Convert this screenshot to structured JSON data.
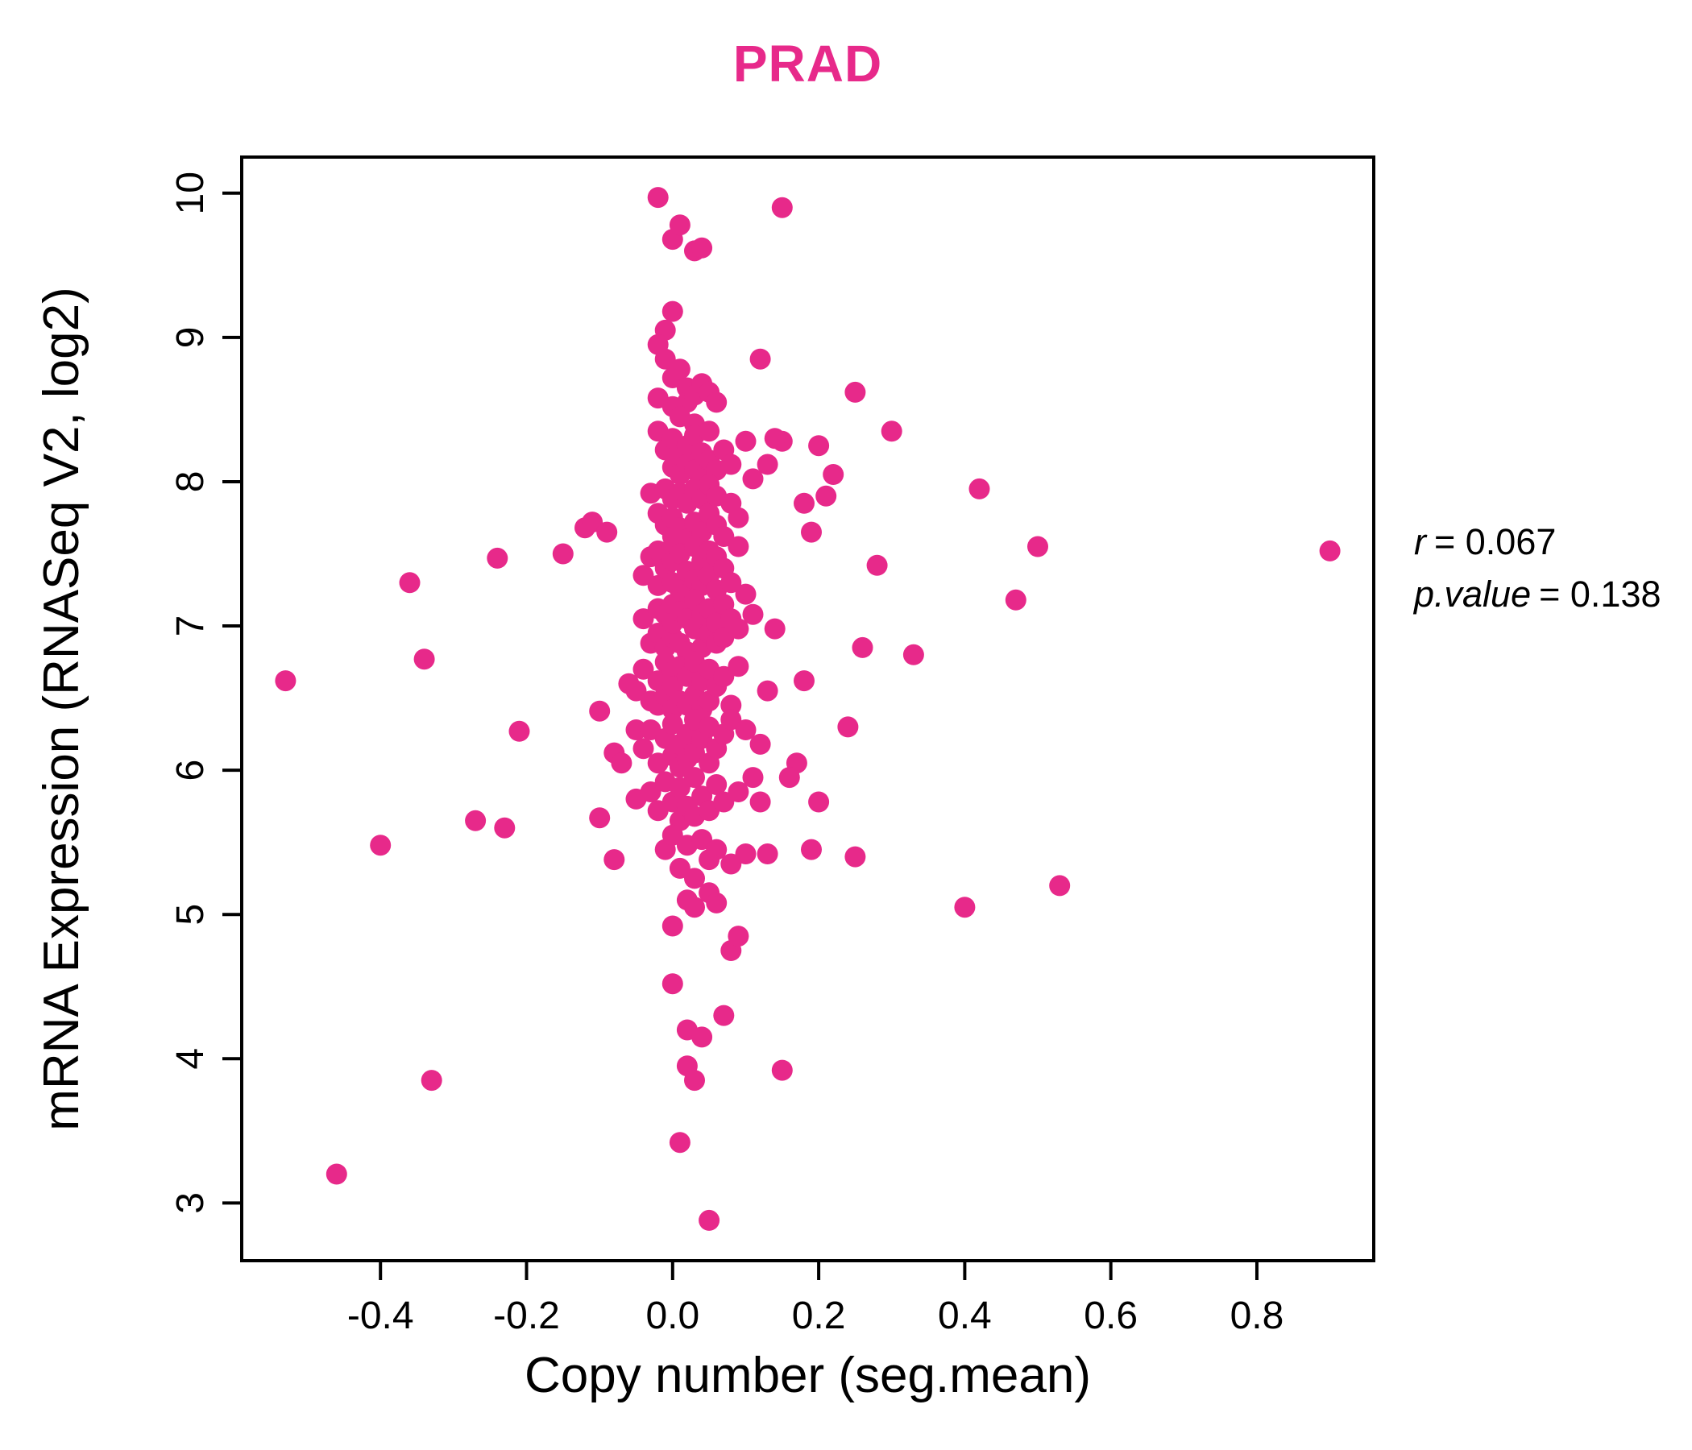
{
  "chart_data": {
    "type": "scatter",
    "title": "PRAD",
    "title_color": "#E7298A",
    "point_color": "#E7298A",
    "axis_color": "#000000",
    "xlabel": "Copy number (seg.mean)",
    "ylabel": "mRNA Expression (RNASeq V2, log2)",
    "xlim": [
      -0.59,
      0.96
    ],
    "ylim": [
      2.6,
      10.25
    ],
    "grid": false,
    "legend": "none",
    "xticks": [
      {
        "v": -0.4,
        "label": "-0.4"
      },
      {
        "v": -0.2,
        "label": "-0.2"
      },
      {
        "v": 0.0,
        "label": "0.0"
      },
      {
        "v": 0.2,
        "label": "0.2"
      },
      {
        "v": 0.4,
        "label": "0.4"
      },
      {
        "v": 0.6,
        "label": "0.6"
      },
      {
        "v": 0.8,
        "label": "0.8"
      }
    ],
    "yticks": [
      {
        "v": 3,
        "label": "3"
      },
      {
        "v": 4,
        "label": "4"
      },
      {
        "v": 5,
        "label": "5"
      },
      {
        "v": 6,
        "label": "6"
      },
      {
        "v": 7,
        "label": "7"
      },
      {
        "v": 8,
        "label": "8"
      },
      {
        "v": 9,
        "label": "9"
      },
      {
        "v": 10,
        "label": "10"
      }
    ],
    "annotation": {
      "lines": [
        {
          "name": "r",
          "eq": "= 0.067"
        },
        {
          "name": "p.value",
          "eq": "= 0.138"
        }
      ]
    },
    "points": [
      [
        -0.53,
        6.62
      ],
      [
        -0.46,
        3.2
      ],
      [
        -0.4,
        5.48
      ],
      [
        -0.36,
        7.3
      ],
      [
        -0.34,
        6.77
      ],
      [
        -0.33,
        3.85
      ],
      [
        -0.27,
        5.65
      ],
      [
        -0.24,
        7.47
      ],
      [
        -0.23,
        5.6
      ],
      [
        -0.21,
        6.27
      ],
      [
        -0.15,
        7.5
      ],
      [
        -0.12,
        7.68
      ],
      [
        -0.11,
        7.72
      ],
      [
        -0.1,
        6.41
      ],
      [
        -0.1,
        5.67
      ],
      [
        -0.09,
        7.65
      ],
      [
        -0.08,
        6.12
      ],
      [
        -0.08,
        5.38
      ],
      [
        -0.07,
        6.05
      ],
      [
        -0.06,
        6.6
      ],
      [
        -0.05,
        5.8
      ],
      [
        -0.05,
        6.28
      ],
      [
        -0.02,
        9.97
      ],
      [
        0.0,
        9.68
      ],
      [
        0.01,
        9.78
      ],
      [
        0.03,
        9.6
      ],
      [
        0.04,
        9.62
      ],
      [
        0.15,
        9.9
      ],
      [
        0.0,
        9.18
      ],
      [
        -0.01,
        9.05
      ],
      [
        -0.02,
        8.95
      ],
      [
        0.05,
        2.88
      ],
      [
        0.01,
        3.42
      ],
      [
        0.0,
        4.52
      ],
      [
        0.02,
        4.2
      ],
      [
        0.04,
        4.15
      ],
      [
        0.07,
        4.3
      ],
      [
        0.0,
        4.92
      ],
      [
        0.02,
        3.95
      ],
      [
        0.03,
        3.85
      ],
      [
        0.15,
        3.92
      ],
      [
        0.08,
        4.75
      ],
      [
        0.09,
        4.85
      ],
      [
        0.9,
        7.52
      ],
      [
        0.53,
        5.2
      ],
      [
        0.4,
        5.05
      ],
      [
        0.42,
        7.95
      ],
      [
        0.47,
        7.18
      ],
      [
        0.5,
        7.55
      ],
      [
        0.33,
        6.8
      ],
      [
        0.3,
        8.35
      ],
      [
        0.25,
        8.62
      ],
      [
        0.28,
        7.42
      ],
      [
        0.26,
        6.85
      ],
      [
        0.22,
        8.05
      ],
      [
        0.21,
        7.9
      ],
      [
        0.2,
        8.25
      ],
      [
        0.2,
        5.78
      ],
      [
        0.19,
        5.45
      ],
      [
        0.18,
        6.62
      ],
      [
        0.17,
        6.05
      ],
      [
        0.16,
        5.95
      ],
      [
        0.15,
        8.28
      ],
      [
        0.14,
        8.3
      ],
      [
        0.14,
        6.98
      ],
      [
        0.13,
        8.12
      ],
      [
        0.13,
        5.42
      ],
      [
        0.24,
        6.3
      ],
      [
        0.25,
        5.4
      ],
      [
        0.19,
        7.65
      ],
      [
        0.18,
        7.85
      ],
      [
        0.12,
        5.78
      ],
      [
        0.13,
        6.55
      ],
      [
        -0.01,
        8.85
      ],
      [
        0.0,
        8.72
      ],
      [
        0.01,
        8.78
      ],
      [
        0.02,
        8.65
      ],
      [
        0.02,
        8.55
      ],
      [
        0.03,
        8.6
      ],
      [
        0.0,
        8.52
      ],
      [
        -0.02,
        8.58
      ],
      [
        0.04,
        8.68
      ],
      [
        0.05,
        8.62
      ],
      [
        0.01,
        8.45
      ],
      [
        0.03,
        8.4
      ],
      [
        0.06,
        8.55
      ],
      [
        0.12,
        8.85
      ],
      [
        -0.02,
        8.35
      ],
      [
        -0.01,
        8.22
      ],
      [
        0.0,
        8.3
      ],
      [
        0.0,
        8.1
      ],
      [
        0.01,
        8.18
      ],
      [
        0.01,
        8.05
      ],
      [
        0.02,
        8.25
      ],
      [
        0.02,
        8.12
      ],
      [
        0.03,
        8.32
      ],
      [
        0.03,
        8.08
      ],
      [
        0.04,
        8.2
      ],
      [
        0.04,
        8.02
      ],
      [
        0.05,
        8.15
      ],
      [
        0.05,
        8.35
      ],
      [
        0.06,
        8.08
      ],
      [
        0.07,
        8.22
      ],
      [
        0.08,
        8.12
      ],
      [
        0.1,
        8.28
      ],
      [
        0.11,
        8.02
      ],
      [
        -0.03,
        7.92
      ],
      [
        -0.02,
        7.78
      ],
      [
        -0.01,
        7.95
      ],
      [
        -0.01,
        7.7
      ],
      [
        0.0,
        7.88
      ],
      [
        0.0,
        7.62
      ],
      [
        0.0,
        7.75
      ],
      [
        0.01,
        7.92
      ],
      [
        0.01,
        7.68
      ],
      [
        0.02,
        7.85
      ],
      [
        0.02,
        7.6
      ],
      [
        0.03,
        7.95
      ],
      [
        0.03,
        7.72
      ],
      [
        0.04,
        7.88
      ],
      [
        0.04,
        7.65
      ],
      [
        0.05,
        7.78
      ],
      [
        0.05,
        7.98
      ],
      [
        0.06,
        7.7
      ],
      [
        0.06,
        7.9
      ],
      [
        0.07,
        7.62
      ],
      [
        0.08,
        7.85
      ],
      [
        0.09,
        7.75
      ],
      [
        -0.04,
        7.35
      ],
      [
        -0.03,
        7.48
      ],
      [
        -0.02,
        7.28
      ],
      [
        -0.02,
        7.52
      ],
      [
        -0.01,
        7.4
      ],
      [
        0.0,
        7.55
      ],
      [
        0.0,
        7.3
      ],
      [
        0.0,
        7.45
      ],
      [
        0.01,
        7.25
      ],
      [
        0.01,
        7.5
      ],
      [
        0.02,
        7.38
      ],
      [
        0.02,
        7.22
      ],
      [
        0.03,
        7.55
      ],
      [
        0.03,
        7.32
      ],
      [
        0.04,
        7.45
      ],
      [
        0.04,
        7.28
      ],
      [
        0.05,
        7.52
      ],
      [
        0.05,
        7.35
      ],
      [
        0.06,
        7.25
      ],
      [
        0.06,
        7.48
      ],
      [
        0.07,
        7.4
      ],
      [
        0.08,
        7.3
      ],
      [
        0.09,
        7.55
      ],
      [
        0.1,
        7.22
      ],
      [
        -0.04,
        7.05
      ],
      [
        -0.03,
        6.88
      ],
      [
        -0.02,
        7.12
      ],
      [
        -0.02,
        6.95
      ],
      [
        -0.01,
        7.08
      ],
      [
        -0.01,
        6.85
      ],
      [
        0.0,
        7.15
      ],
      [
        0.0,
        6.92
      ],
      [
        0.0,
        7.02
      ],
      [
        0.01,
        7.1
      ],
      [
        0.01,
        6.88
      ],
      [
        0.02,
        7.05
      ],
      [
        0.02,
        6.82
      ],
      [
        0.03,
        7.18
      ],
      [
        0.03,
        6.98
      ],
      [
        0.04,
        7.08
      ],
      [
        0.04,
        6.85
      ],
      [
        0.05,
        7.12
      ],
      [
        0.05,
        6.95
      ],
      [
        0.06,
        7.02
      ],
      [
        0.06,
        6.88
      ],
      [
        0.07,
        7.15
      ],
      [
        0.07,
        6.92
      ],
      [
        0.08,
        7.05
      ],
      [
        0.09,
        6.98
      ],
      [
        0.11,
        7.08
      ],
      [
        -0.05,
        6.55
      ],
      [
        -0.04,
        6.7
      ],
      [
        -0.03,
        6.48
      ],
      [
        -0.02,
        6.62
      ],
      [
        -0.02,
        6.45
      ],
      [
        -0.01,
        6.75
      ],
      [
        -0.01,
        6.52
      ],
      [
        0.0,
        6.68
      ],
      [
        0.0,
        6.42
      ],
      [
        0.0,
        6.58
      ],
      [
        0.01,
        6.72
      ],
      [
        0.01,
        6.48
      ],
      [
        0.02,
        6.65
      ],
      [
        0.02,
        6.45
      ],
      [
        0.03,
        6.75
      ],
      [
        0.03,
        6.52
      ],
      [
        0.04,
        6.62
      ],
      [
        0.04,
        6.42
      ],
      [
        0.05,
        6.7
      ],
      [
        0.05,
        6.48
      ],
      [
        0.06,
        6.58
      ],
      [
        0.07,
        6.65
      ],
      [
        0.08,
        6.45
      ],
      [
        0.09,
        6.72
      ],
      [
        -0.04,
        6.15
      ],
      [
        -0.03,
        6.28
      ],
      [
        -0.02,
        6.05
      ],
      [
        -0.01,
        6.22
      ],
      [
        0.0,
        6.1
      ],
      [
        0.0,
        6.32
      ],
      [
        0.01,
        6.18
      ],
      [
        0.01,
        6.02
      ],
      [
        0.02,
        6.25
      ],
      [
        0.02,
        6.08
      ],
      [
        0.03,
        6.35
      ],
      [
        0.03,
        6.12
      ],
      [
        0.04,
        6.22
      ],
      [
        0.05,
        6.05
      ],
      [
        0.05,
        6.3
      ],
      [
        0.06,
        6.15
      ],
      [
        0.07,
        6.25
      ],
      [
        0.08,
        6.35
      ],
      [
        0.1,
        6.28
      ],
      [
        0.12,
        6.18
      ],
      [
        -0.03,
        5.85
      ],
      [
        -0.02,
        5.72
      ],
      [
        -0.01,
        5.92
      ],
      [
        0.0,
        5.78
      ],
      [
        0.01,
        5.65
      ],
      [
        0.01,
        5.88
      ],
      [
        0.02,
        5.75
      ],
      [
        0.03,
        5.95
      ],
      [
        0.03,
        5.68
      ],
      [
        0.04,
        5.82
      ],
      [
        0.05,
        5.72
      ],
      [
        0.06,
        5.9
      ],
      [
        0.07,
        5.78
      ],
      [
        0.09,
        5.85
      ],
      [
        0.11,
        5.95
      ],
      [
        -0.01,
        5.45
      ],
      [
        0.0,
        5.55
      ],
      [
        0.01,
        5.32
      ],
      [
        0.02,
        5.48
      ],
      [
        0.03,
        5.25
      ],
      [
        0.04,
        5.52
      ],
      [
        0.05,
        5.38
      ],
      [
        0.06,
        5.45
      ],
      [
        0.08,
        5.35
      ],
      [
        0.1,
        5.42
      ],
      [
        0.02,
        5.1
      ],
      [
        0.03,
        5.05
      ],
      [
        0.05,
        5.15
      ],
      [
        0.06,
        5.08
      ]
    ]
  }
}
